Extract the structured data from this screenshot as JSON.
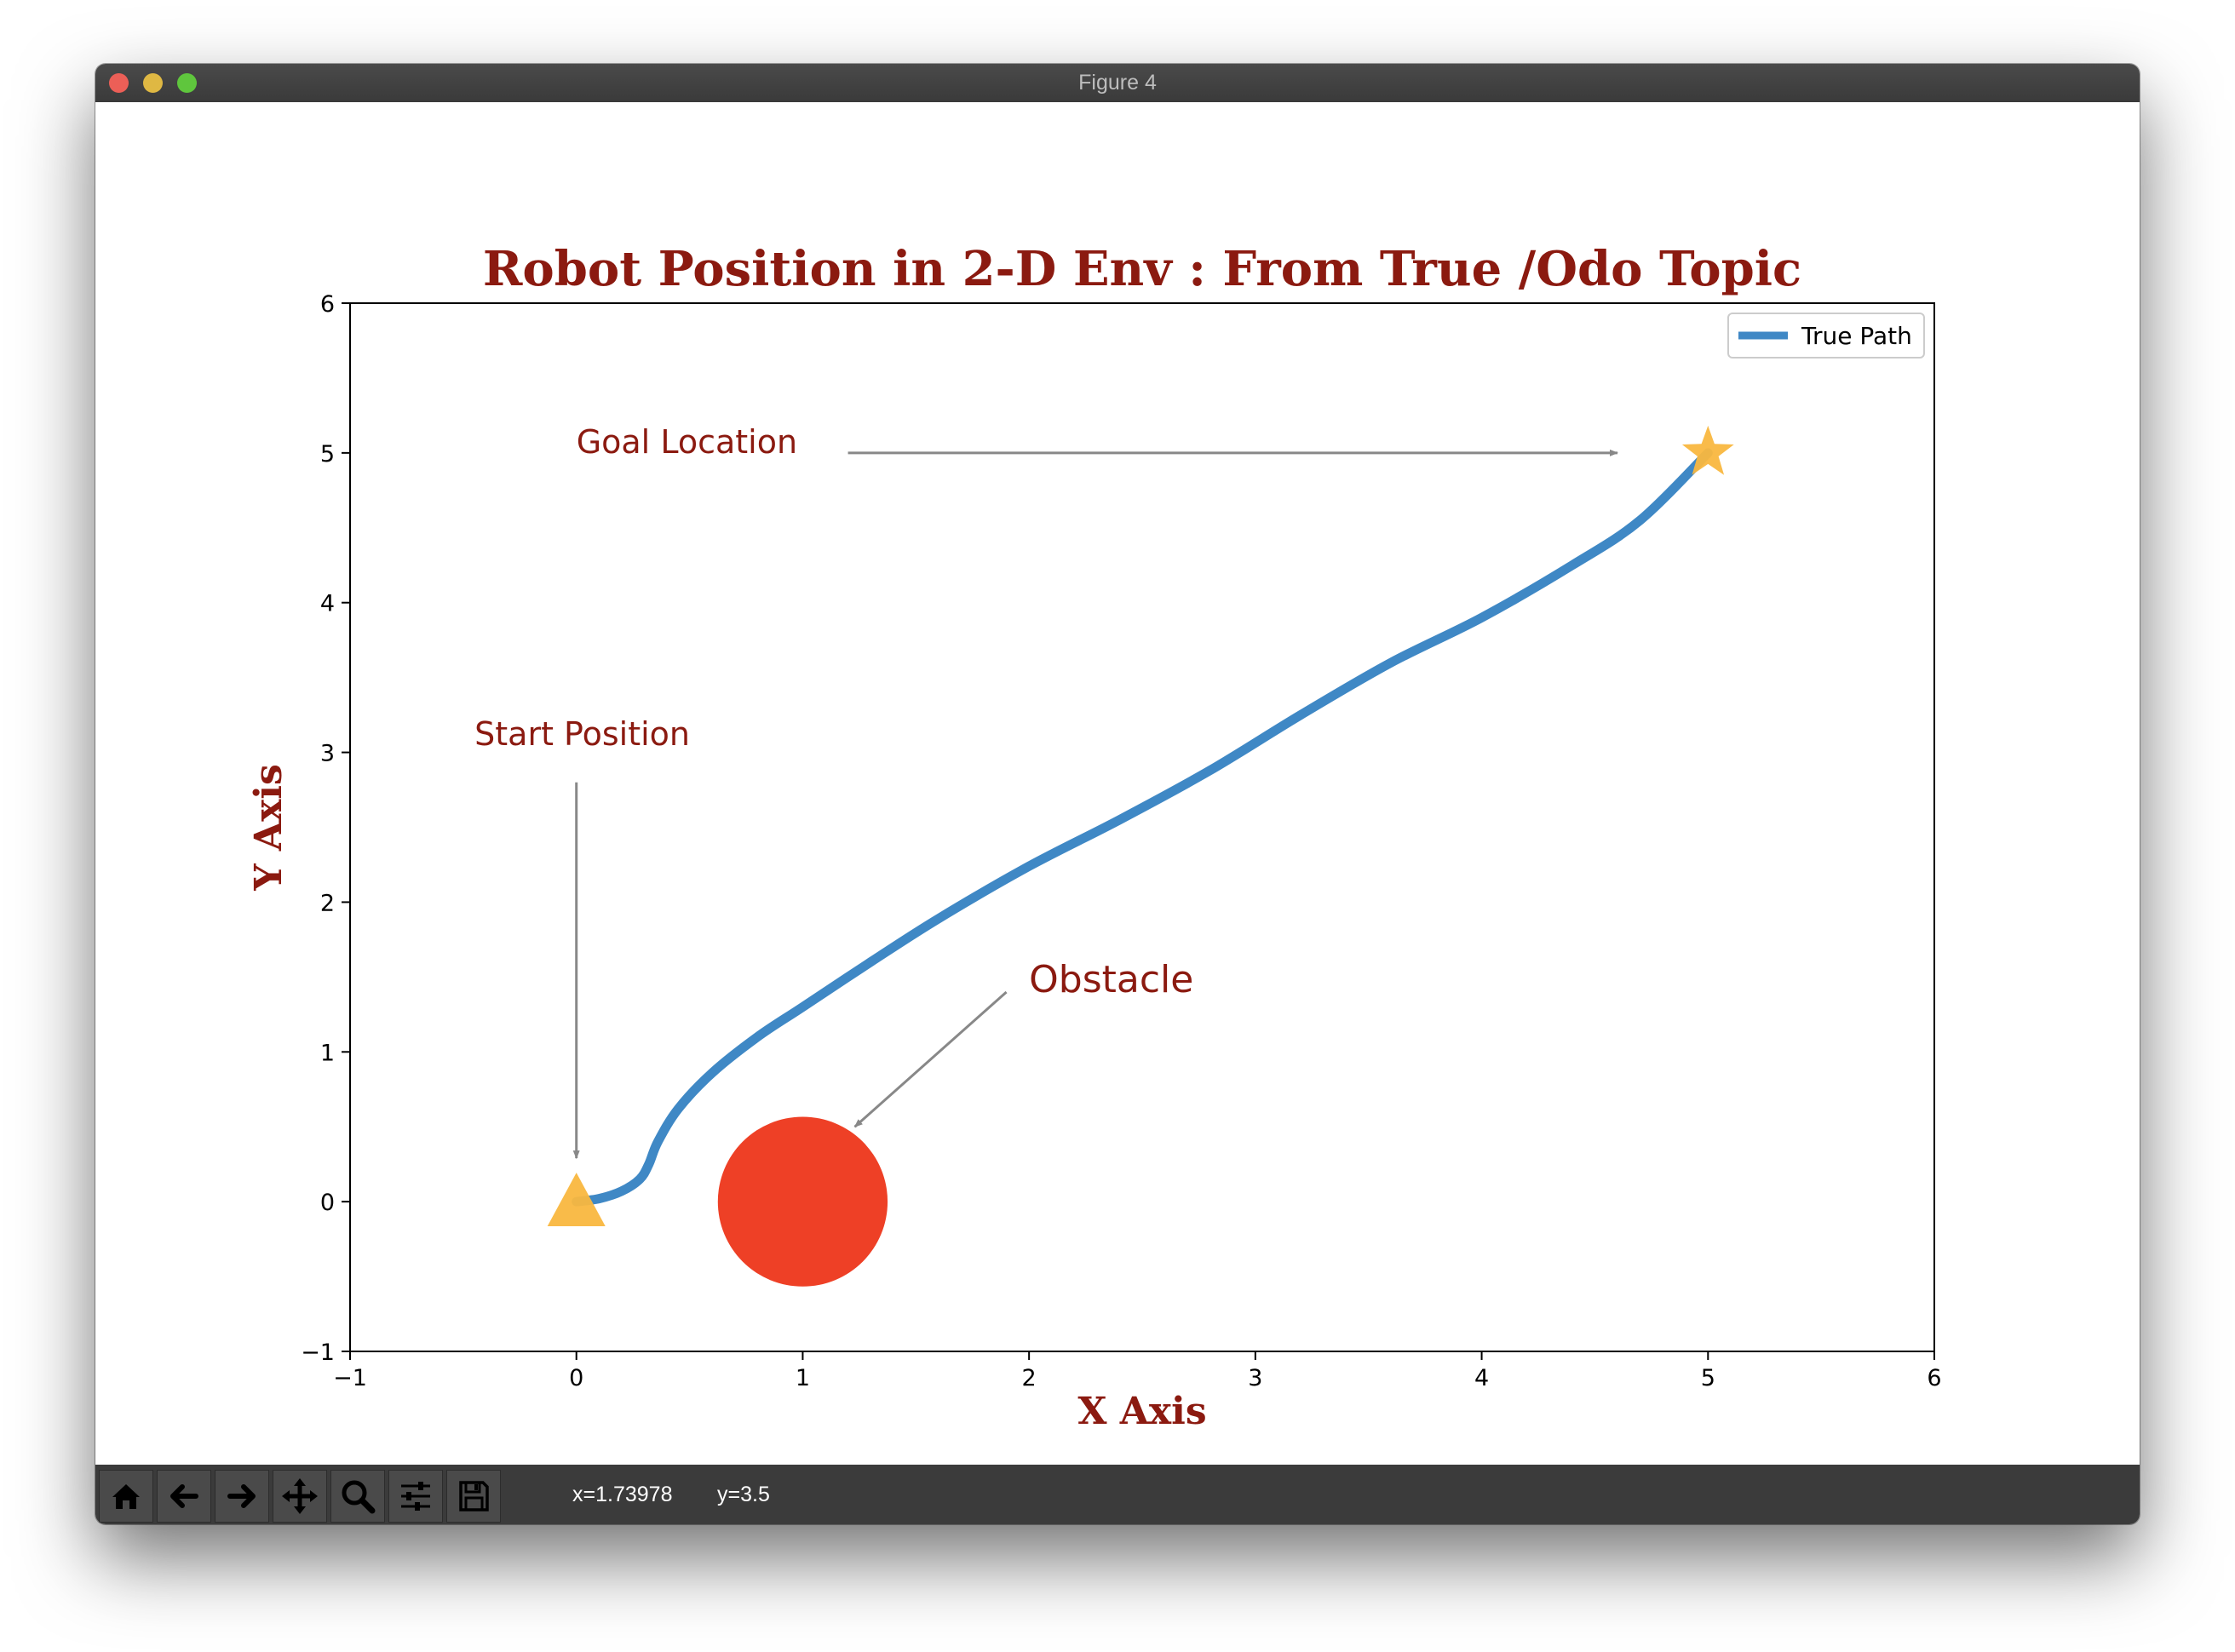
{
  "window": {
    "title": "Figure 4",
    "traffic_colors": {
      "close": "#ec5f57",
      "minimize": "#dfb843",
      "zoom": "#5fc63d"
    }
  },
  "toolbar": {
    "buttons": [
      {
        "name": "home-button",
        "icon": "home-icon"
      },
      {
        "name": "back-button",
        "icon": "arrow-left-icon"
      },
      {
        "name": "forward-button",
        "icon": "arrow-right-icon"
      },
      {
        "name": "pan-button",
        "icon": "move-icon"
      },
      {
        "name": "zoom-button",
        "icon": "magnifier-icon"
      },
      {
        "name": "configure-subplots-button",
        "icon": "sliders-icon"
      },
      {
        "name": "save-button",
        "icon": "floppy-disk-icon"
      }
    ],
    "x_readout": "x=1.73978",
    "y_readout": "y=3.5"
  },
  "chart_data": {
    "type": "line",
    "title": "Robot Position in 2-D Env : From True /Odo Topic",
    "xlabel": "X Axis",
    "ylabel": "Y Axis",
    "xlim": [
      -1,
      6
    ],
    "ylim": [
      -1,
      6
    ],
    "xticks": [
      "−1",
      "0",
      "1",
      "2",
      "3",
      "4",
      "5",
      "6"
    ],
    "yticks": [
      "−1",
      "0",
      "1",
      "2",
      "3",
      "4",
      "5",
      "6"
    ],
    "xtick_values": [
      -1,
      0,
      1,
      2,
      3,
      4,
      5,
      6
    ],
    "ytick_values": [
      -1,
      0,
      1,
      2,
      3,
      4,
      5,
      6
    ],
    "grid": false,
    "legend_position": "top-right",
    "series": [
      {
        "name": "True Path",
        "color": "#3f88c5",
        "x": [
          0,
          0.1,
          0.2,
          0.28,
          0.32,
          0.36,
          0.45,
          0.6,
          0.8,
          1.0,
          1.3,
          1.6,
          2.0,
          2.4,
          2.8,
          3.2,
          3.6,
          4.0,
          4.4,
          4.7,
          5.0
        ],
        "y": [
          0,
          0.02,
          0.07,
          0.15,
          0.25,
          0.4,
          0.62,
          0.86,
          1.1,
          1.3,
          1.6,
          1.89,
          2.24,
          2.55,
          2.88,
          3.25,
          3.6,
          3.9,
          4.25,
          4.55,
          5.0
        ]
      }
    ],
    "markers": [
      {
        "name": "start-marker",
        "shape": "triangle",
        "x": 0,
        "y": 0,
        "color": "#f9b73f"
      },
      {
        "name": "goal-marker",
        "shape": "star",
        "x": 5,
        "y": 5,
        "color": "#f9b73f"
      },
      {
        "name": "obstacle-circle",
        "shape": "circle",
        "x": 1,
        "y": 0,
        "radius": 0.375,
        "color": "#ee4026"
      }
    ],
    "annotations": [
      {
        "name": "goal-annotation",
        "text": "Goal Location",
        "text_xy": [
          0,
          5
        ],
        "arrow_from": [
          1.2,
          5
        ],
        "arrow_to": [
          4.6,
          5
        ]
      },
      {
        "name": "start-annotation",
        "text": "Start Position",
        "text_xy": [
          -0.45,
          3.05
        ],
        "arrow_from": [
          0,
          2.8
        ],
        "arrow_to": [
          0,
          0.29
        ]
      },
      {
        "name": "obstacle-annotation",
        "text": "Obstacle",
        "text_xy": [
          2,
          1.4
        ],
        "arrow_from": [
          1.9,
          1.4
        ],
        "arrow_to": [
          1.23,
          0.5
        ]
      }
    ],
    "colors": {
      "title": "#8b1a10",
      "annotation_text": "#8b1a10",
      "arrow": "#888888",
      "axes": "#000000"
    }
  }
}
